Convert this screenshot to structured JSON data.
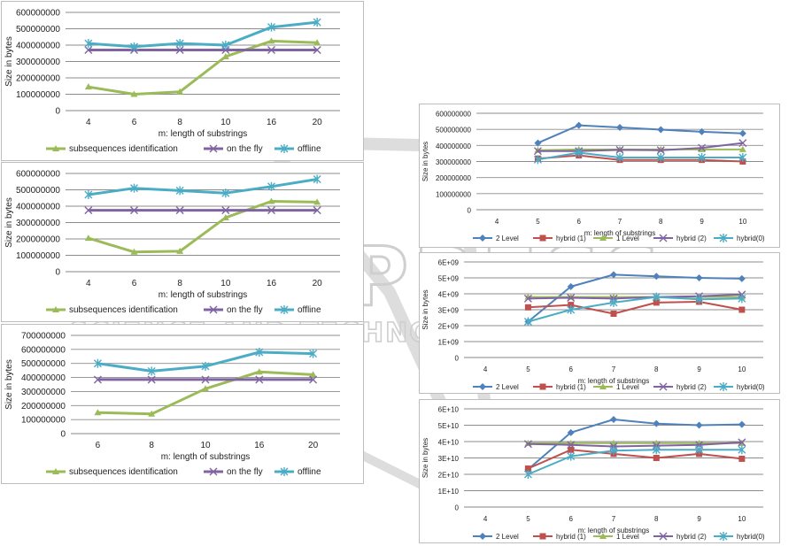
{
  "watermark": {
    "brand": "SCITEPRESS",
    "tagline": "SCIENCE AND TECHNOLOGY PUBLICATIONS"
  },
  "chart_data": [
    {
      "type": "line",
      "ylabel": "Size in bytes",
      "xlabel": "m: length of substrings",
      "categories": [
        "4",
        "6",
        "8",
        "10",
        "16",
        "20"
      ],
      "ylim": [
        0,
        600000000
      ],
      "yticks": [
        "0",
        "100000000",
        "200000000",
        "300000000",
        "400000000",
        "500000000",
        "600000000"
      ],
      "grid": true,
      "legend": "bottom",
      "series": [
        {
          "name": "subsequences identification",
          "color": "#9bbb59",
          "marker": "triangle",
          "values": [
            145000000,
            100000000,
            115000000,
            330000000,
            425000000,
            415000000
          ]
        },
        {
          "name": "on the fly",
          "color": "#8064a2",
          "marker": "x",
          "values": [
            370000000,
            370000000,
            370000000,
            370000000,
            370000000,
            370000000
          ]
        },
        {
          "name": "offline",
          "color": "#4bacc6",
          "marker": "star",
          "values": [
            410000000,
            390000000,
            410000000,
            400000000,
            510000000,
            540000000
          ]
        }
      ]
    },
    {
      "type": "line",
      "ylabel": "Size in bytes",
      "xlabel": "m: length of substrings",
      "categories": [
        "4",
        "6",
        "8",
        "10",
        "16",
        "20"
      ],
      "ylim": [
        0,
        600000000
      ],
      "yticks": [
        "0",
        "100000000",
        "200000000",
        "300000000",
        "400000000",
        "500000000",
        "600000000"
      ],
      "grid": true,
      "legend": "bottom",
      "series": [
        {
          "name": "subsequences identification",
          "color": "#9bbb59",
          "marker": "triangle",
          "values": [
            205000000,
            120000000,
            125000000,
            330000000,
            430000000,
            425000000
          ]
        },
        {
          "name": "on the fly",
          "color": "#8064a2",
          "marker": "x",
          "values": [
            375000000,
            375000000,
            375000000,
            375000000,
            375000000,
            375000000
          ]
        },
        {
          "name": "offline",
          "color": "#4bacc6",
          "marker": "star",
          "values": [
            470000000,
            510000000,
            495000000,
            480000000,
            520000000,
            565000000
          ]
        }
      ]
    },
    {
      "type": "line",
      "ylabel": "Size in bytes",
      "xlabel": "m: length of substrings",
      "categories": [
        "6",
        "8",
        "10",
        "16",
        "20"
      ],
      "ylim": [
        0,
        700000000
      ],
      "yticks": [
        "0",
        "100000000",
        "200000000",
        "300000000",
        "400000000",
        "500000000",
        "600000000",
        "700000000"
      ],
      "grid": true,
      "legend": "bottom",
      "series": [
        {
          "name": "subsequences identification",
          "color": "#9bbb59",
          "marker": "triangle",
          "values": [
            150000000,
            140000000,
            320000000,
            440000000,
            420000000
          ]
        },
        {
          "name": "on the fly",
          "color": "#8064a2",
          "marker": "x",
          "values": [
            385000000,
            385000000,
            385000000,
            385000000,
            385000000
          ]
        },
        {
          "name": "offline",
          "color": "#4bacc6",
          "marker": "star",
          "values": [
            500000000,
            445000000,
            480000000,
            580000000,
            570000000
          ]
        }
      ]
    },
    {
      "type": "line",
      "ylabel": "Size in bytes",
      "xlabel": "m: length of substrings",
      "categories": [
        "4",
        "5",
        "6",
        "7",
        "8",
        "9",
        "10"
      ],
      "ylim": [
        0,
        600000000
      ],
      "yticks": [
        "0",
        "100000000",
        "200000000",
        "300000000",
        "400000000",
        "500000000",
        "600000000"
      ],
      "grid": true,
      "legend": "bottom",
      "series": [
        {
          "name": "2 Level",
          "color": "#4f81bd",
          "marker": "diamond",
          "values": [
            null,
            415000000,
            525000000,
            512000000,
            498000000,
            485000000,
            475000000
          ]
        },
        {
          "name": "hybrid (1)",
          "color": "#c0504d",
          "marker": "square",
          "values": [
            null,
            318000000,
            338000000,
            310000000,
            310000000,
            310000000,
            300000000
          ]
        },
        {
          "name": "1 Level",
          "color": "#9bbb59",
          "marker": "triangle",
          "values": [
            null,
            370000000,
            375000000,
            375000000,
            375000000,
            375000000,
            375000000
          ]
        },
        {
          "name": "hybrid (2)",
          "color": "#8064a2",
          "marker": "x",
          "values": [
            null,
            365000000,
            365000000,
            372000000,
            370000000,
            385000000,
            415000000
          ]
        },
        {
          "name": "hybrid(0)",
          "color": "#4bacc6",
          "marker": "star",
          "values": [
            null,
            312000000,
            355000000,
            325000000,
            325000000,
            325000000,
            325000000
          ]
        }
      ]
    },
    {
      "type": "line",
      "ylabel": "Size in bytes",
      "xlabel": "m: length of substrings",
      "categories": [
        "4",
        "5",
        "6",
        "7",
        "8",
        "9",
        "10"
      ],
      "ylim": [
        0,
        6000000000
      ],
      "yticks": [
        "0",
        "1E+09",
        "2E+09",
        "3E+09",
        "4E+09",
        "5E+09",
        "6E+09"
      ],
      "grid": true,
      "legend": "bottom",
      "series": [
        {
          "name": "2 Level",
          "color": "#4f81bd",
          "marker": "diamond",
          "values": [
            null,
            2250000000,
            4450000000,
            5200000000,
            5100000000,
            5000000000,
            4950000000
          ]
        },
        {
          "name": "hybrid (1)",
          "color": "#c0504d",
          "marker": "square",
          "values": [
            null,
            3150000000,
            3300000000,
            2750000000,
            3450000000,
            3500000000,
            3000000000
          ]
        },
        {
          "name": "1 Level",
          "color": "#9bbb59",
          "marker": "triangle",
          "values": [
            null,
            3800000000,
            3800000000,
            3800000000,
            3800000000,
            3800000000,
            3800000000
          ]
        },
        {
          "name": "hybrid (2)",
          "color": "#8064a2",
          "marker": "x",
          "values": [
            null,
            3700000000,
            3750000000,
            3700000000,
            3800000000,
            3850000000,
            3950000000
          ]
        },
        {
          "name": "hybrid(0)",
          "color": "#4bacc6",
          "marker": "star",
          "values": [
            null,
            2250000000,
            3000000000,
            3450000000,
            3800000000,
            3650000000,
            3700000000
          ]
        }
      ]
    },
    {
      "type": "line",
      "ylabel": "Size in bytes",
      "xlabel": "m: length of substrings",
      "categories": [
        "4",
        "5",
        "6",
        "7",
        "8",
        "9",
        "10"
      ],
      "ylim": [
        0,
        60000000000
      ],
      "yticks": [
        "0",
        "1E+10",
        "2E+10",
        "3E+10",
        "4E+10",
        "5E+10",
        "6E+10"
      ],
      "grid": true,
      "legend": "bottom",
      "series": [
        {
          "name": "2 Level",
          "color": "#4f81bd",
          "marker": "diamond",
          "values": [
            null,
            23000000000,
            45500000000,
            53500000000,
            51000000000,
            50000000000,
            50500000000
          ]
        },
        {
          "name": "hybrid (1)",
          "color": "#c0504d",
          "marker": "square",
          "values": [
            null,
            23500000000,
            35000000000,
            32500000000,
            30000000000,
            32500000000,
            29500000000
          ]
        },
        {
          "name": "1 Level",
          "color": "#9bbb59",
          "marker": "triangle",
          "values": [
            null,
            39000000000,
            39000000000,
            39000000000,
            39000000000,
            39000000000,
            39000000000
          ]
        },
        {
          "name": "hybrid (2)",
          "color": "#8064a2",
          "marker": "x",
          "values": [
            null,
            38500000000,
            38000000000,
            37000000000,
            37500000000,
            38000000000,
            39500000000
          ]
        },
        {
          "name": "hybrid(0)",
          "color": "#4bacc6",
          "marker": "star",
          "values": [
            null,
            20000000000,
            31000000000,
            34500000000,
            35000000000,
            35000000000,
            35000000000
          ]
        }
      ]
    }
  ]
}
